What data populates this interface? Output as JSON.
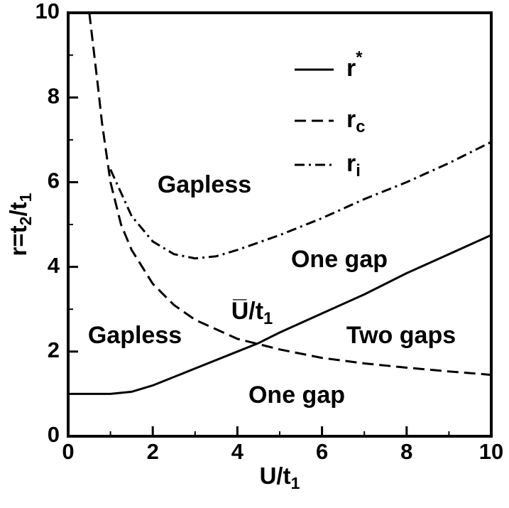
{
  "chart_data": {
    "type": "line",
    "x_label": [
      {
        "t": "U/t"
      },
      {
        "sub": "1"
      }
    ],
    "y_label": [
      {
        "t": "r=t"
      },
      {
        "sub": "2"
      },
      {
        "t": "/t"
      },
      {
        "sub": "1"
      }
    ],
    "xlim": [
      0,
      10
    ],
    "xticks": [
      0,
      2,
      4,
      6,
      8,
      10
    ],
    "xminor": [
      1,
      3,
      5,
      7,
      9
    ],
    "ylim": [
      0,
      10
    ],
    "yticks": [
      0,
      2,
      4,
      6,
      8,
      10
    ],
    "yminor": [
      1,
      3,
      5,
      7,
      9
    ],
    "series": [
      {
        "name": [
          {
            "t": "r"
          },
          {
            "sup": "*"
          }
        ],
        "color": "#000000",
        "dash": "solid",
        "x": [
          0,
          1,
          1.5,
          2,
          3,
          4,
          4.5,
          5,
          6,
          7,
          8,
          9,
          10
        ],
        "values": [
          1.0,
          1.0,
          1.05,
          1.2,
          1.6,
          2.0,
          2.2,
          2.45,
          2.9,
          3.35,
          3.85,
          4.3,
          4.75
        ]
      },
      {
        "name": [
          {
            "t": "r"
          },
          {
            "sub": "c"
          }
        ],
        "color": "#000000",
        "dash": "dashed",
        "x": [
          0.5,
          0.7,
          0.8,
          1.0,
          1.25,
          1.5,
          2,
          2.5,
          3,
          4,
          5,
          6,
          7,
          8,
          9,
          10
        ],
        "values": [
          10,
          8.3,
          7.4,
          6.0,
          5.0,
          4.4,
          3.6,
          3.1,
          2.75,
          2.3,
          2.05,
          1.85,
          1.72,
          1.62,
          1.53,
          1.45
        ]
      },
      {
        "name": [
          {
            "t": "r"
          },
          {
            "sub": "i"
          }
        ],
        "color": "#000000",
        "dash": "dashdot",
        "x": [
          1.0,
          1.5,
          2,
          2.5,
          3,
          3.5,
          4,
          5,
          6,
          7,
          8,
          9,
          10
        ],
        "values": [
          6.3,
          5.2,
          4.6,
          4.3,
          4.2,
          4.25,
          4.4,
          4.75,
          5.15,
          5.6,
          6.0,
          6.45,
          6.95
        ]
      }
    ],
    "annotations": [
      [
        {
          "t": "Gapless"
        }
      ],
      [
        {
          "t": "One gap"
        }
      ],
      [
        {
          "t": "U̅/t"
        },
        {
          "sub": "1"
        }
      ],
      [
        {
          "t": "Gapless"
        }
      ],
      [
        {
          "t": "Two gaps"
        }
      ],
      [
        {
          "t": "One gap"
        }
      ]
    ]
  }
}
